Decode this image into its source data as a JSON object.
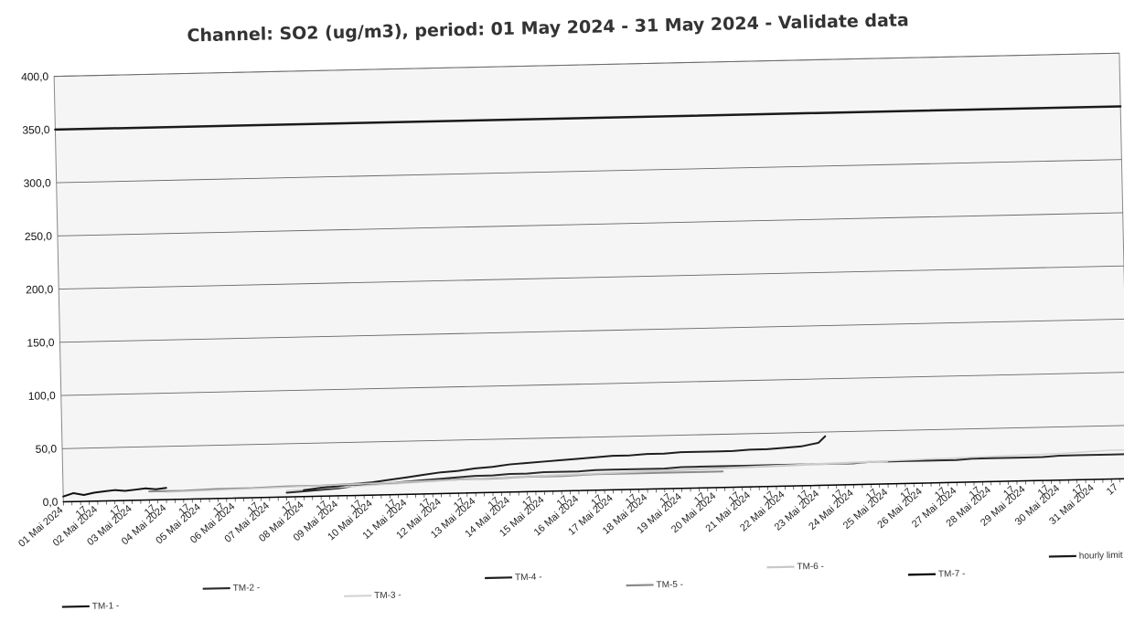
{
  "chart_data": {
    "type": "line",
    "title": "Channel: SO2 (ug/m3), period: 01 May 2024 - 31 May 2024 - Validate data",
    "xlabel": "",
    "ylabel": "",
    "ylim": [
      0,
      400
    ],
    "y_ticks": [
      "400,0",
      "350,0",
      "300,0",
      "250,0",
      "200,0",
      "150,0",
      "100,0",
      "50,0",
      "0,0"
    ],
    "y_tick_values": [
      400,
      350,
      300,
      250,
      200,
      150,
      100,
      50,
      0
    ],
    "x_range_days": [
      1,
      32
    ],
    "x_ticks": [
      {
        "day": 1,
        "label": "01 Mai 2024"
      },
      {
        "day": 1.7,
        "label": "17"
      },
      {
        "day": 2,
        "label": "02 Mai 2024"
      },
      {
        "day": 2.7,
        "label": "17"
      },
      {
        "day": 3,
        "label": "03 Mai 2024"
      },
      {
        "day": 3.7,
        "label": "17"
      },
      {
        "day": 4,
        "label": "04 Mai 2024"
      },
      {
        "day": 4.7,
        "label": "17"
      },
      {
        "day": 5,
        "label": "05 Mai 2024"
      },
      {
        "day": 5.7,
        "label": "17"
      },
      {
        "day": 6,
        "label": "06 Mai 2024"
      },
      {
        "day": 6.7,
        "label": "17"
      },
      {
        "day": 7,
        "label": "07 Mai 2024"
      },
      {
        "day": 7.7,
        "label": "17"
      },
      {
        "day": 8,
        "label": "08 Mai 2024"
      },
      {
        "day": 8.7,
        "label": "17"
      },
      {
        "day": 9,
        "label": "09 Mai 2024"
      },
      {
        "day": 9.7,
        "label": "17"
      },
      {
        "day": 10,
        "label": "10 Mai 2024"
      },
      {
        "day": 10.7,
        "label": "17"
      },
      {
        "day": 11,
        "label": "11 Mai 2024"
      },
      {
        "day": 11.7,
        "label": "17"
      },
      {
        "day": 12,
        "label": "12 Mai 2024"
      },
      {
        "day": 12.7,
        "label": "17"
      },
      {
        "day": 13,
        "label": "13 Mai 2024"
      },
      {
        "day": 13.7,
        "label": "17"
      },
      {
        "day": 14,
        "label": "14 Mai 2024"
      },
      {
        "day": 14.7,
        "label": "17"
      },
      {
        "day": 15,
        "label": "15 Mai 2024"
      },
      {
        "day": 15.7,
        "label": "17"
      },
      {
        "day": 16,
        "label": "16 Mai 2024"
      },
      {
        "day": 16.7,
        "label": "17"
      },
      {
        "day": 17,
        "label": "17 Mai 2024"
      },
      {
        "day": 17.7,
        "label": "17"
      },
      {
        "day": 18,
        "label": "18 Mai 2024"
      },
      {
        "day": 18.7,
        "label": "17"
      },
      {
        "day": 19,
        "label": "19 Mai 2024"
      },
      {
        "day": 19.7,
        "label": "17"
      },
      {
        "day": 20,
        "label": "20 Mai 2024"
      },
      {
        "day": 20.7,
        "label": "17"
      },
      {
        "day": 21,
        "label": "21 Mai 2024"
      },
      {
        "day": 21.7,
        "label": "17"
      },
      {
        "day": 22,
        "label": "22 Mai 2024"
      },
      {
        "day": 22.7,
        "label": "17"
      },
      {
        "day": 23,
        "label": "23 Mai 2024"
      },
      {
        "day": 23.7,
        "label": "17"
      },
      {
        "day": 24,
        "label": "24 Mai 2024"
      },
      {
        "day": 24.7,
        "label": "17"
      },
      {
        "day": 25,
        "label": "25 Mai 2024"
      },
      {
        "day": 25.7,
        "label": "17"
      },
      {
        "day": 26,
        "label": "26 Mai 2024"
      },
      {
        "day": 26.7,
        "label": "17"
      },
      {
        "day": 27,
        "label": "27 Mai 2024"
      },
      {
        "day": 27.7,
        "label": "17"
      },
      {
        "day": 28,
        "label": "28 Mai 2024"
      },
      {
        "day": 28.7,
        "label": "17"
      },
      {
        "day": 29,
        "label": "29 Mai 2024"
      },
      {
        "day": 29.7,
        "label": "17"
      },
      {
        "day": 30,
        "label": "30 Mai 2024"
      },
      {
        "day": 30.7,
        "label": "17"
      },
      {
        "day": 31,
        "label": "31 Mai 2024"
      },
      {
        "day": 31.7,
        "label": "17"
      }
    ],
    "grid": true,
    "legend_position": "bottom",
    "series": [
      {
        "name": "TM-1 -",
        "color": "#111111",
        "width": 2,
        "x": [
          1.0,
          1.3,
          1.6,
          1.9,
          2.2,
          2.5,
          2.8,
          3.1,
          3.4,
          3.7,
          4.0
        ],
        "y": [
          5,
          8,
          6,
          8,
          9,
          10,
          9,
          10,
          11,
          10,
          11
        ]
      },
      {
        "name": "TM-2 -",
        "color": "#2a2a2a",
        "width": 2,
        "x": [
          7.5,
          8.0,
          8.5,
          9.0,
          9.5,
          10.0,
          10.5,
          11.0,
          11.5,
          12.0,
          12.5,
          13.0,
          13.5,
          14.0,
          14.5,
          15.0,
          15.5,
          16.0,
          16.5,
          17.0,
          17.5,
          18.0,
          18.5,
          19.0,
          19.5,
          20.0,
          20.5,
          21.0,
          21.5,
          22.0,
          22.5,
          23.0,
          23.5,
          24.0,
          24.5,
          25.0,
          25.5,
          26.0,
          26.5,
          27.0,
          27.5,
          28.0,
          28.5,
          29.0,
          29.5,
          30.0,
          30.5,
          31.0,
          31.5,
          32.0
        ],
        "y": [
          4,
          5,
          6,
          7,
          9,
          10,
          11,
          12,
          13,
          14,
          15,
          16,
          16,
          17,
          17,
          18,
          18,
          18,
          19,
          19,
          19,
          19,
          19,
          20,
          20,
          20,
          20,
          20,
          20,
          20,
          20,
          20,
          20,
          20,
          21,
          21,
          21,
          21,
          21,
          21,
          22,
          22,
          22,
          22,
          22,
          23,
          23,
          23,
          23,
          23
        ]
      },
      {
        "name": "TM-3 -",
        "color": "#d4d4d4",
        "width": 1.5,
        "x": [
          7.5,
          9.0,
          10.5,
          12.0,
          13.5,
          15.0,
          16.5,
          18.0,
          19.5,
          21.0,
          22.5,
          24.0,
          25.5,
          27.0,
          28.5,
          30.0,
          31.5,
          32.0
        ],
        "y": [
          6,
          8,
          10,
          12,
          14,
          15,
          16,
          17,
          18,
          19,
          20,
          21,
          22,
          23,
          24,
          25,
          27,
          27
        ]
      },
      {
        "name": "TM-4 -",
        "color": "#1e1e1e",
        "width": 2,
        "x": [
          8.0,
          8.5,
          9.0,
          9.5,
          10.0,
          10.5,
          11.0,
          11.5,
          12.0,
          12.5,
          13.0,
          13.5,
          14.0,
          14.5,
          15.0,
          15.5,
          16.0,
          16.5,
          17.0,
          17.5,
          18.0,
          18.5,
          19.0,
          19.5,
          20.0,
          20.5,
          21.0,
          21.5,
          22.0,
          22.5,
          23.0,
          23.2
        ],
        "y": [
          6,
          8,
          9,
          11,
          12,
          14,
          16,
          18,
          20,
          21,
          23,
          24,
          26,
          27,
          28,
          29,
          30,
          31,
          32,
          32,
          33,
          33,
          34,
          34,
          34,
          34,
          35,
          35,
          36,
          37,
          40,
          46
        ]
      },
      {
        "name": "TM-5 -",
        "color": "#8a8a8a",
        "width": 2,
        "x": [
          3.5,
          4.5,
          5.5,
          6.5,
          7.5,
          8.5,
          9.5,
          10.5,
          11.5,
          12.5,
          13.5,
          14.5,
          15.5,
          16.5,
          17.5,
          18.5,
          19.5,
          20.2
        ],
        "y": [
          8,
          8,
          9,
          9,
          10,
          10,
          11,
          11,
          12,
          13,
          13,
          14,
          14,
          15,
          15,
          15,
          15,
          15
        ]
      },
      {
        "name": "TM-6 -",
        "color": "#c8c8c8",
        "width": 1.5,
        "x": [
          4.0,
          5.5,
          7.0,
          8.5,
          10.0,
          11.5,
          13.0,
          14.5,
          16.0,
          17.5,
          19.0,
          20.5,
          22.0,
          23.5,
          25.0
        ],
        "y": [
          7,
          8,
          9,
          10,
          11,
          12,
          13,
          14,
          15,
          16,
          17,
          18,
          19,
          20,
          21
        ]
      },
      {
        "name": "TM-7 -",
        "color": "#000000",
        "width": 1.5,
        "x": [
          1.0,
          32.0
        ],
        "y": [
          0,
          0
        ]
      },
      {
        "name": "hourly limit",
        "color": "#1a1a1a",
        "width": 2.5,
        "x": [
          1.0,
          32.0
        ],
        "y": [
          350,
          350
        ]
      }
    ]
  }
}
